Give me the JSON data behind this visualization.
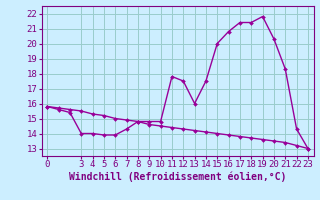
{
  "x": [
    0,
    1,
    2,
    3,
    4,
    5,
    6,
    7,
    8,
    9,
    10,
    11,
    12,
    13,
    14,
    15,
    16,
    17,
    18,
    19,
    20,
    21,
    22,
    23
  ],
  "y_windchill": [
    15.8,
    15.6,
    15.4,
    14.0,
    14.0,
    13.9,
    13.9,
    14.3,
    14.8,
    14.8,
    14.8,
    17.8,
    17.5,
    16.0,
    17.5,
    20.0,
    20.8,
    21.4,
    21.4,
    21.8,
    20.3,
    18.3,
    14.3,
    13.0
  ],
  "y_temp": [
    15.8,
    15.7,
    15.6,
    15.5,
    15.3,
    15.2,
    15.0,
    14.9,
    14.8,
    14.6,
    14.5,
    14.4,
    14.3,
    14.2,
    14.1,
    14.0,
    13.9,
    13.8,
    13.7,
    13.6,
    13.5,
    13.4,
    13.2,
    13.0
  ],
  "line_color": "#990099",
  "marker": "D",
  "marker_size": 2,
  "line_width": 1.0,
  "bg_color": "#cceeff",
  "grid_color": "#99cccc",
  "xlabel": "Windchill (Refroidissement éolien,°C)",
  "xlabel_color": "#800080",
  "xlabel_fontsize": 7,
  "tick_color": "#800080",
  "tick_fontsize": 6.5,
  "ylim": [
    12.5,
    22.5
  ],
  "xlim": [
    -0.5,
    23.5
  ],
  "yticks": [
    13,
    14,
    15,
    16,
    17,
    18,
    19,
    20,
    21,
    22
  ],
  "xticks": [
    0,
    3,
    4,
    5,
    6,
    7,
    8,
    9,
    10,
    11,
    12,
    13,
    14,
    15,
    16,
    17,
    18,
    19,
    20,
    21,
    22,
    23
  ]
}
